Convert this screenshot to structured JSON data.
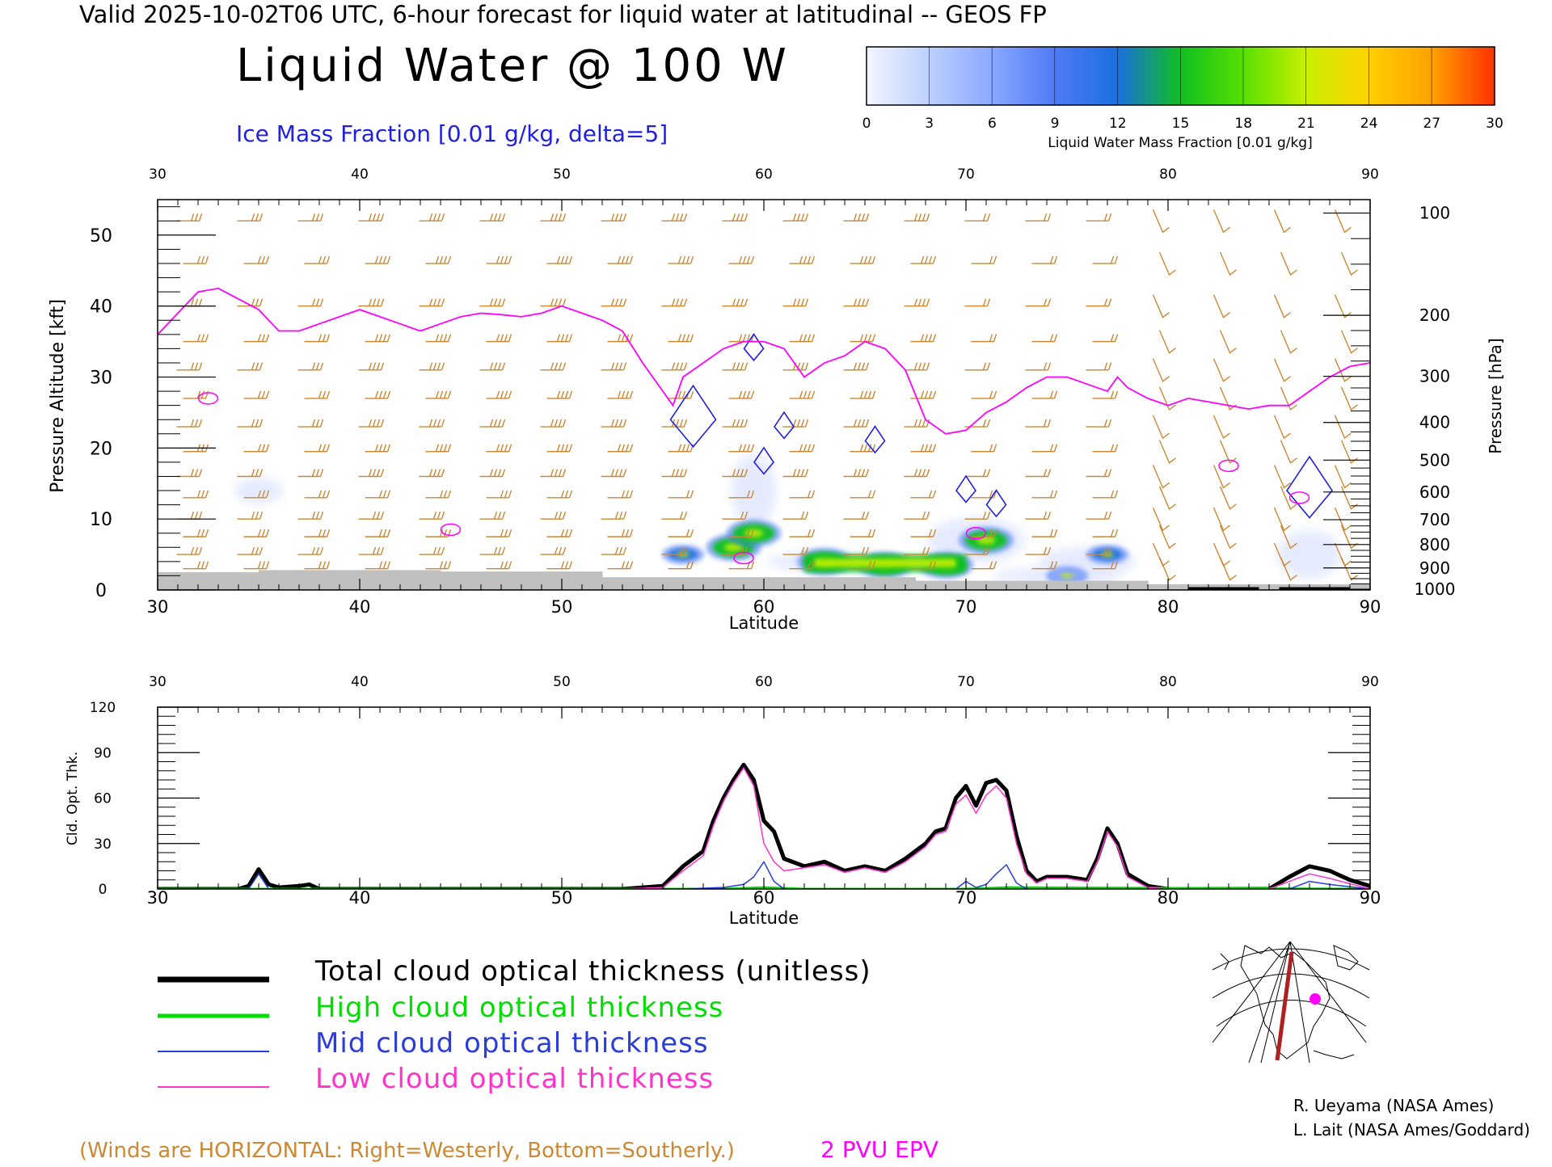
{
  "header": {
    "valid_line": "Valid 2025-10-02T06 UTC, 6-hour forecast for liquid water at latitudinal -- GEOS FP",
    "title": "Liquid Water @ 100 W",
    "ice_label": "Ice Mass Fraction [0.01 g/kg, delta=5]"
  },
  "colorbar": {
    "ticks": [
      "0",
      "3",
      "6",
      "9",
      "12",
      "15",
      "18",
      "21",
      "24",
      "27",
      "30"
    ],
    "label": "Liquid Water Mass Fraction [0.01 g/kg]",
    "colors": [
      "#f4f6ff",
      "#bcd0ff",
      "#8aa8ff",
      "#4f7af6",
      "#1a6fe0",
      "#10c020",
      "#58e000",
      "#c8f000",
      "#ffd000",
      "#ffa000",
      "#ff3000"
    ]
  },
  "colors": {
    "epv": "#ff00ff",
    "ice": "#2020e0",
    "wind": "#cc8833",
    "ground": "#c0c0c0",
    "total": "#000000",
    "high": "#00dd00",
    "mid": "#2a3cdc",
    "low": "#ff33cc"
  },
  "chart_data": [
    {
      "type": "heatmap",
      "name": "cross-section",
      "xlabel": "Latitude",
      "ylabel": "Pressure Altitude [kft]",
      "ylabel_right": "Pressure [hPa]",
      "xlim": [
        30,
        90
      ],
      "ylim": [
        0,
        55
      ],
      "x_ticks": [
        "30",
        "40",
        "50",
        "60",
        "70",
        "80",
        "90"
      ],
      "top_ticks": [
        "30",
        "40",
        "50",
        "60",
        "70",
        "80",
        "90"
      ],
      "y_ticks": [
        "0",
        "10",
        "20",
        "30",
        "40",
        "50"
      ],
      "pressure_levels": [
        {
          "label": "100",
          "kft": 53.1
        },
        {
          "label": "200",
          "kft": 38.7
        },
        {
          "label": "300",
          "kft": 30.1
        },
        {
          "label": "400",
          "kft": 23.6
        },
        {
          "label": "500",
          "kft": 18.3
        },
        {
          "label": "600",
          "kft": 13.8
        },
        {
          "label": "700",
          "kft": 9.9
        },
        {
          "label": "800",
          "kft": 6.4
        },
        {
          "label": "900",
          "kft": 3.1
        },
        {
          "label": "1000",
          "kft": 0.1
        }
      ],
      "epv_2pvu_line": [
        [
          30,
          36
        ],
        [
          31,
          39
        ],
        [
          32,
          42
        ],
        [
          33,
          42.5
        ],
        [
          34,
          41
        ],
        [
          35,
          39.5
        ],
        [
          36,
          36.5
        ],
        [
          37,
          36.5
        ],
        [
          38,
          37.5
        ],
        [
          39,
          38.5
        ],
        [
          40,
          39.5
        ],
        [
          41,
          38.5
        ],
        [
          42,
          37.5
        ],
        [
          43,
          36.5
        ],
        [
          44,
          37.5
        ],
        [
          45,
          38.5
        ],
        [
          46,
          39
        ],
        [
          47,
          38.8
        ],
        [
          48,
          38.5
        ],
        [
          49,
          39
        ],
        [
          50,
          40
        ],
        [
          51,
          39
        ],
        [
          52,
          38
        ],
        [
          53,
          36.5
        ],
        [
          54,
          32
        ],
        [
          55,
          28
        ],
        [
          55.5,
          26
        ],
        [
          56,
          30
        ],
        [
          57,
          32
        ],
        [
          58,
          34
        ],
        [
          59,
          35
        ],
        [
          60,
          35
        ],
        [
          61,
          34
        ],
        [
          62,
          30
        ],
        [
          63,
          32
        ],
        [
          64,
          33
        ],
        [
          65,
          35
        ],
        [
          66,
          34
        ],
        [
          67,
          31
        ],
        [
          68,
          24
        ],
        [
          69,
          22
        ],
        [
          70,
          22.5
        ],
        [
          71,
          25
        ],
        [
          72,
          26.5
        ],
        [
          73,
          28.5
        ],
        [
          74,
          30
        ],
        [
          75,
          30
        ],
        [
          76,
          29
        ],
        [
          77,
          28
        ],
        [
          77.5,
          30
        ],
        [
          78,
          28.5
        ],
        [
          79,
          27
        ],
        [
          80,
          26
        ],
        [
          81,
          27
        ],
        [
          82,
          26.5
        ],
        [
          83,
          26
        ],
        [
          84,
          25.5
        ],
        [
          85,
          26
        ],
        [
          86,
          26
        ],
        [
          87,
          28
        ],
        [
          88,
          30
        ],
        [
          89,
          31.5
        ],
        [
          90,
          32
        ]
      ],
      "liquid_water_blobs": [
        {
          "lat": 56,
          "kft": 5,
          "value": 12
        },
        {
          "lat": 58.5,
          "kft": 6,
          "value": 15
        },
        {
          "lat": 59.5,
          "kft": 8,
          "value": 15
        },
        {
          "lat": 63,
          "kft": 4,
          "value": 15
        },
        {
          "lat": 66,
          "kft": 3.5,
          "value": 15
        },
        {
          "lat": 69,
          "kft": 3.5,
          "value": 15
        },
        {
          "lat": 71,
          "kft": 7,
          "value": 15
        },
        {
          "lat": 77,
          "kft": 5,
          "value": 12
        },
        {
          "lat": 75,
          "kft": 2,
          "value": 6
        }
      ],
      "ice_contours": [
        {
          "lat": 56.5,
          "kft": 24
        },
        {
          "lat": 59.5,
          "kft": 34
        },
        {
          "lat": 61,
          "kft": 23
        },
        {
          "lat": 60,
          "kft": 18
        },
        {
          "lat": 65.5,
          "kft": 21
        },
        {
          "lat": 70,
          "kft": 14
        },
        {
          "lat": 71.5,
          "kft": 12
        },
        {
          "lat": 87,
          "kft": 14
        }
      ]
    },
    {
      "type": "line",
      "name": "cloud-optical-thickness",
      "xlabel": "Latitude",
      "ylabel": "Cld. Opt. Thk.",
      "xlim": [
        30,
        90
      ],
      "ylim": [
        0,
        120
      ],
      "x_ticks": [
        "30",
        "40",
        "50",
        "60",
        "70",
        "80",
        "90"
      ],
      "top_ticks": [
        "30",
        "40",
        "50",
        "60",
        "70",
        "80",
        "90"
      ],
      "y_ticks": [
        "0",
        "30",
        "60",
        "90",
        "120"
      ],
      "series": [
        {
          "name": "Total cloud optical thickness (unitless)",
          "color": "#000000",
          "width": 5,
          "x": [
            30,
            34,
            34.5,
            35,
            35.5,
            36,
            37,
            37.5,
            38,
            53,
            55,
            56,
            57,
            57.5,
            58,
            58.5,
            59,
            59.5,
            60,
            60.5,
            61,
            62,
            63,
            64,
            65,
            66,
            67,
            68,
            68.5,
            69,
            69.5,
            70,
            70.5,
            71,
            71.5,
            72,
            72.5,
            73,
            73.5,
            74,
            75,
            76,
            76.5,
            77,
            77.5,
            78,
            79,
            80,
            85,
            86,
            87,
            88,
            89,
            90
          ],
          "y": [
            0,
            0,
            2,
            13,
            3,
            1,
            2,
            3,
            0,
            0,
            2,
            15,
            25,
            45,
            60,
            72,
            82,
            72,
            45,
            38,
            20,
            15,
            18,
            12,
            15,
            12,
            20,
            30,
            38,
            40,
            60,
            68,
            55,
            70,
            72,
            65,
            35,
            12,
            5,
            8,
            8,
            6,
            20,
            40,
            30,
            10,
            2,
            0,
            0,
            8,
            15,
            12,
            6,
            2
          ]
        },
        {
          "name": "High cloud optical thickness",
          "color": "#00dd00",
          "width": 3,
          "x": [
            30,
            58,
            60,
            62,
            70,
            72,
            90
          ],
          "y": [
            0,
            0,
            1,
            0,
            0,
            1,
            0
          ]
        },
        {
          "name": "Mid cloud optical thickness",
          "color": "#2a3cdc",
          "width": 1.5,
          "x": [
            30,
            34.5,
            35,
            35.5,
            56,
            58,
            59,
            59.5,
            60,
            60.5,
            61,
            69.5,
            70,
            70.5,
            71,
            71.5,
            72,
            72.5,
            73,
            86,
            87,
            88,
            90
          ],
          "y": [
            0,
            0,
            10,
            0,
            0,
            1,
            3,
            8,
            18,
            5,
            0,
            0,
            5,
            1,
            3,
            10,
            16,
            4,
            0,
            0,
            5,
            3,
            0
          ]
        },
        {
          "name": "Low cloud optical thickness",
          "color": "#ff33cc",
          "width": 1.5,
          "x": [
            30,
            53,
            55,
            56,
            57,
            57.5,
            58,
            58.5,
            59,
            59.5,
            60,
            60.5,
            61,
            62,
            63,
            64,
            65,
            66,
            67,
            68,
            68.5,
            69,
            69.5,
            70,
            70.5,
            71,
            71.5,
            72,
            72.5,
            73,
            73.5,
            74,
            75,
            76,
            76.5,
            77,
            77.5,
            78,
            79,
            80,
            85,
            86,
            87,
            88,
            90
          ],
          "y": [
            0,
            0,
            1,
            12,
            22,
            42,
            58,
            70,
            80,
            68,
            30,
            18,
            12,
            14,
            16,
            11,
            14,
            11,
            18,
            28,
            36,
            38,
            56,
            62,
            50,
            62,
            68,
            60,
            30,
            10,
            4,
            7,
            7,
            5,
            18,
            38,
            28,
            8,
            1,
            0,
            0,
            5,
            10,
            7,
            0
          ]
        }
      ]
    }
  ],
  "legend": {
    "total": "Total cloud optical thickness (unitless)",
    "high": "High cloud optical thickness",
    "mid": "Mid cloud optical thickness",
    "low": "Low cloud optical thickness"
  },
  "credits": {
    "line1": "R. Ueyama (NASA Ames)",
    "line2": "L. Lait (NASA Ames/Goddard)"
  },
  "footer": {
    "winds_note": "(Winds are HORIZONTAL: Right=Westerly, Bottom=Southerly.)",
    "epv_note": "2 PVU EPV"
  }
}
